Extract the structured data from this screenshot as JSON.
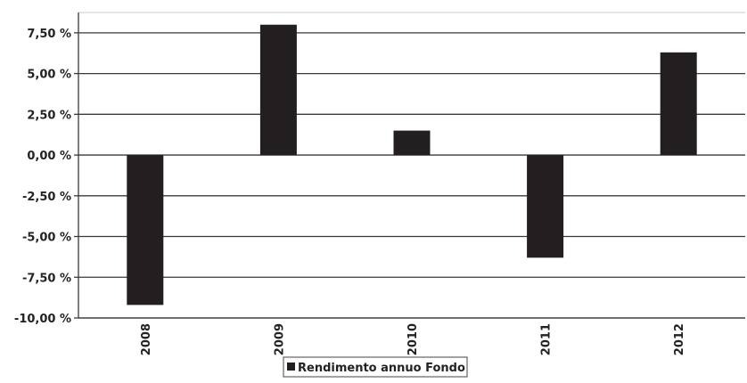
{
  "chart_data": {
    "type": "bar",
    "title": "",
    "xlabel": "",
    "ylabel": "",
    "categories": [
      "2008",
      "2009",
      "2010",
      "2011",
      "2012"
    ],
    "series": [
      {
        "name": "Rendimento annuo Fondo",
        "values": [
          -9.2,
          8.0,
          1.5,
          -6.3,
          6.3
        ],
        "color": "#231f20"
      }
    ],
    "ylim": [
      -10,
      8.75
    ],
    "yticks": [
      7.5,
      5.0,
      2.5,
      0.0,
      -2.5,
      -5.0,
      -7.5,
      -10.0
    ],
    "ytick_labels": [
      "7,50 %",
      "5,00 %",
      "2,50 %",
      "0,00 %",
      "-2,50 %",
      "-5,00 %",
      "-7,50 %",
      "-10,00 %"
    ],
    "grid": true,
    "legend_position": "bottom-center"
  }
}
